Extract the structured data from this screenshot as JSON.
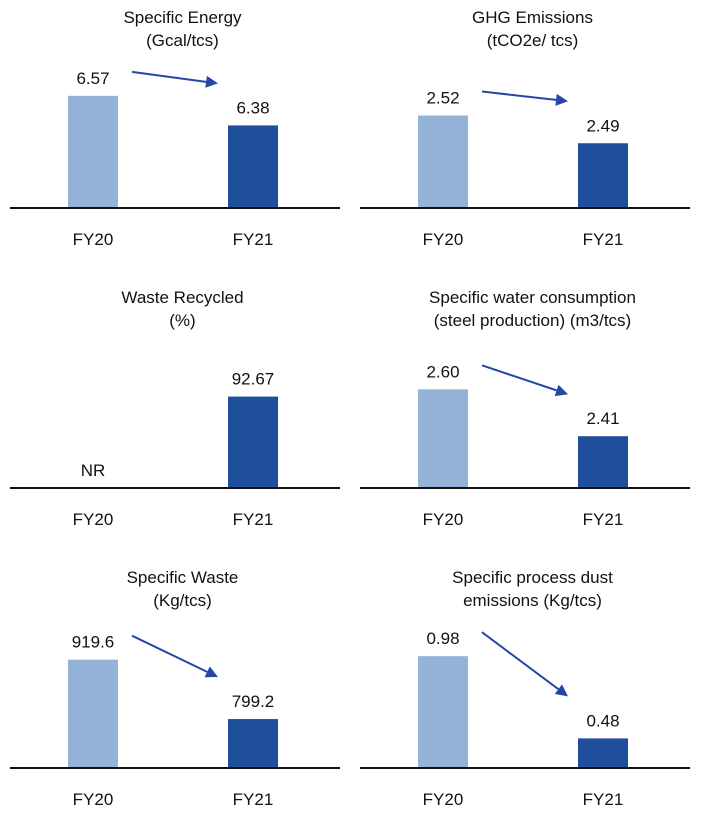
{
  "chart_data": [
    {
      "type": "bar",
      "title": "Specific Energy",
      "subtitle": "(Gcal/tcs)",
      "categories": [
        "FY20",
        "FY21"
      ],
      "values": [
        6.57,
        6.38
      ],
      "value_labels": [
        "6.57",
        "6.38"
      ],
      "trend_arrow": true,
      "ylim": [
        5.85,
        6.8
      ],
      "colors": [
        "#95b3d7",
        "#1f4e9c"
      ]
    },
    {
      "type": "bar",
      "title": "GHG Emissions",
      "subtitle": "(tCO2e/ tcs)",
      "categories": [
        "FY20",
        "FY21"
      ],
      "values": [
        2.52,
        2.49
      ],
      "value_labels": [
        "2.52",
        "2.49"
      ],
      "trend_arrow": true,
      "ylim": [
        2.42,
        2.58
      ],
      "colors": [
        "#95b3d7",
        "#1f4e9c"
      ]
    },
    {
      "type": "bar",
      "title": "Waste Recycled",
      "subtitle": "(%)",
      "categories": [
        "FY20",
        "FY21"
      ],
      "values": [
        null,
        92.67
      ],
      "value_labels": [
        "NR",
        "92.67"
      ],
      "trend_arrow": false,
      "ylim": [
        0,
        150
      ],
      "colors": [
        "#95b3d7",
        "#1f4e9c"
      ]
    },
    {
      "type": "bar",
      "title": "Specific water consumption",
      "subtitle": "(steel production) (m3/tcs)",
      "categories": [
        "FY20",
        "FY21"
      ],
      "values": [
        2.6,
        2.41
      ],
      "value_labels": [
        "2.60",
        "2.41"
      ],
      "trend_arrow": true,
      "ylim": [
        2.2,
        2.8
      ],
      "colors": [
        "#95b3d7",
        "#1f4e9c"
      ]
    },
    {
      "type": "bar",
      "title": "Specific Waste",
      "subtitle": "(Kg/tcs)",
      "categories": [
        "FY20",
        "FY21"
      ],
      "values": [
        919.6,
        799.2
      ],
      "value_labels": [
        "919.6",
        "799.2"
      ],
      "trend_arrow": true,
      "ylim": [
        700,
        1000
      ],
      "colors": [
        "#95b3d7",
        "#1f4e9c"
      ]
    },
    {
      "type": "bar",
      "title": "Specific process dust",
      "subtitle": "emissions (Kg/tcs)",
      "categories": [
        "FY20",
        "FY21"
      ],
      "values": [
        0.98,
        0.48
      ],
      "value_labels": [
        "0.98",
        "0.48"
      ],
      "trend_arrow": true,
      "ylim": [
        0.3,
        1.2
      ],
      "colors": [
        "#95b3d7",
        "#1f4e9c"
      ]
    }
  ]
}
